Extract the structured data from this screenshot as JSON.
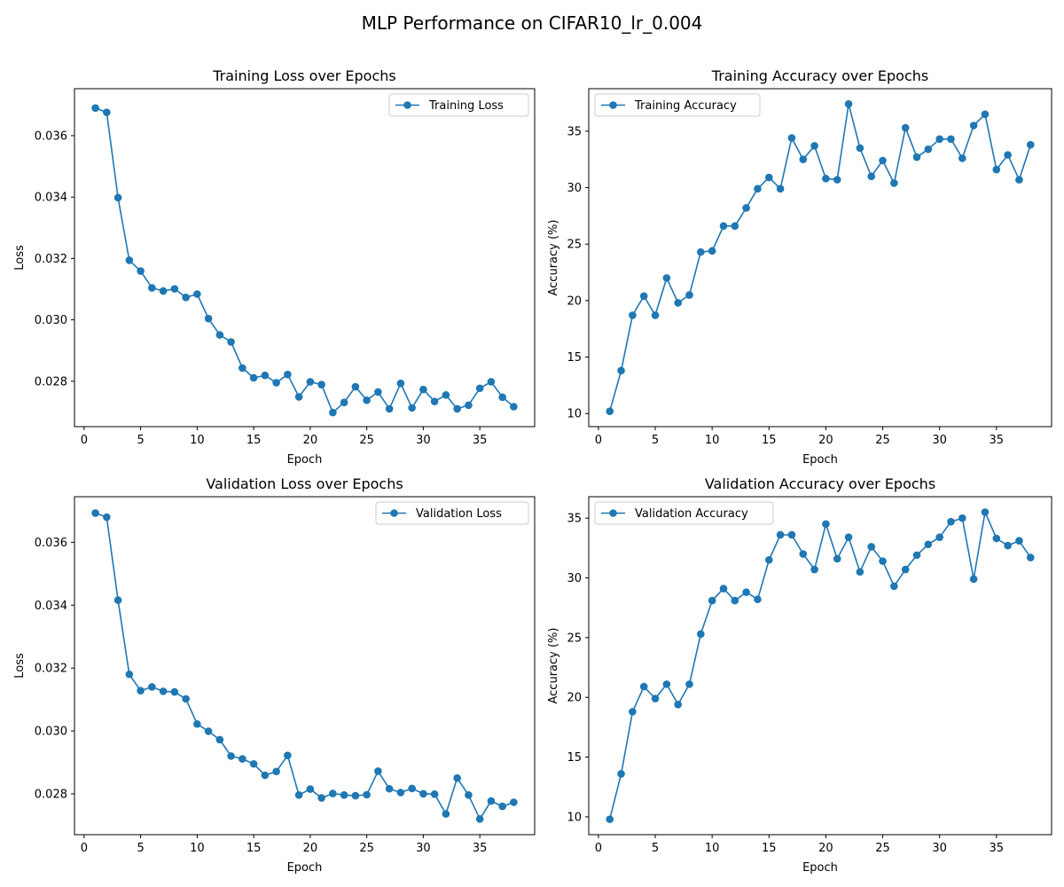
{
  "figure": {
    "suptitle": "MLP Performance on CIFAR10_lr_0.004",
    "line_color": "#1f77b4"
  },
  "chart_data": [
    {
      "type": "line",
      "title": "Training Loss over Epochs",
      "xlabel": "Epoch",
      "ylabel": "Loss",
      "legend": "top-right",
      "grid": false,
      "xlim": [
        -0.85,
        39.85
      ],
      "ylim": [
        0.02652,
        0.03753
      ],
      "xticks": [
        0,
        5,
        10,
        15,
        20,
        25,
        30,
        35
      ],
      "yticks": [
        0.028,
        0.03,
        0.032,
        0.034,
        0.036
      ],
      "ytick_labels": [
        "0.028",
        "0.030",
        "0.032",
        "0.034",
        "0.036"
      ],
      "series": [
        {
          "name": "Training Loss",
          "x": [
            1,
            2,
            3,
            4,
            5,
            6,
            7,
            8,
            9,
            10,
            11,
            12,
            13,
            14,
            15,
            16,
            17,
            18,
            19,
            20,
            21,
            22,
            23,
            24,
            25,
            26,
            27,
            28,
            29,
            30,
            31,
            32,
            33,
            34,
            35,
            36,
            37,
            38
          ],
          "values": [
            0.0369,
            0.03676,
            0.03398,
            0.03194,
            0.03159,
            0.03104,
            0.03094,
            0.03101,
            0.03073,
            0.03084,
            0.03004,
            0.02951,
            0.02928,
            0.02843,
            0.02811,
            0.02819,
            0.02795,
            0.02822,
            0.02749,
            0.02798,
            0.02789,
            0.02698,
            0.02731,
            0.02782,
            0.02738,
            0.02765,
            0.0271,
            0.02793,
            0.02713,
            0.02773,
            0.02734,
            0.02755,
            0.0271,
            0.02722,
            0.02777,
            0.02798,
            0.02748,
            0.02717
          ]
        }
      ]
    },
    {
      "type": "line",
      "title": "Training Accuracy over Epochs",
      "xlabel": "Epoch",
      "ylabel": "Accuracy (%)",
      "legend": "top-left",
      "grid": false,
      "xlim": [
        -0.85,
        39.85
      ],
      "ylim": [
        8.84,
        38.76
      ],
      "xticks": [
        0,
        5,
        10,
        15,
        20,
        25,
        30,
        35
      ],
      "yticks": [
        10,
        15,
        20,
        25,
        30,
        35
      ],
      "ytick_labels": [
        "10",
        "15",
        "20",
        "25",
        "30",
        "35"
      ],
      "series": [
        {
          "name": "Training Accuracy",
          "x": [
            1,
            2,
            3,
            4,
            5,
            6,
            7,
            8,
            9,
            10,
            11,
            12,
            13,
            14,
            15,
            16,
            17,
            18,
            19,
            20,
            21,
            22,
            23,
            24,
            25,
            26,
            27,
            28,
            29,
            30,
            31,
            32,
            33,
            34,
            35,
            36,
            37,
            38
          ],
          "values": [
            10.2,
            13.8,
            18.7,
            20.4,
            18.7,
            22.0,
            19.8,
            20.5,
            24.3,
            24.4,
            26.6,
            26.6,
            28.2,
            29.9,
            30.9,
            29.9,
            34.4,
            32.5,
            33.7,
            30.8,
            30.7,
            37.4,
            33.5,
            31.0,
            32.4,
            30.4,
            35.3,
            32.7,
            33.4,
            34.3,
            34.3,
            32.6,
            35.5,
            36.5,
            31.6,
            32.9,
            30.7,
            33.8
          ]
        }
      ]
    },
    {
      "type": "line",
      "title": "Validation Loss over Epochs",
      "xlabel": "Epoch",
      "ylabel": "Loss",
      "legend": "top-right",
      "grid": false,
      "xlim": [
        -0.85,
        39.85
      ],
      "ylim": [
        0.0267,
        0.03745
      ],
      "xticks": [
        0,
        5,
        10,
        15,
        20,
        25,
        30,
        35
      ],
      "yticks": [
        0.028,
        0.03,
        0.032,
        0.034,
        0.036
      ],
      "ytick_labels": [
        "0.028",
        "0.030",
        "0.032",
        "0.034",
        "0.036"
      ],
      "series": [
        {
          "name": "Validation Loss",
          "x": [
            1,
            2,
            3,
            4,
            5,
            6,
            7,
            8,
            9,
            10,
            11,
            12,
            13,
            14,
            15,
            16,
            17,
            18,
            19,
            20,
            21,
            22,
            23,
            24,
            25,
            26,
            27,
            28,
            29,
            30,
            31,
            32,
            33,
            34,
            35,
            36,
            37,
            38
          ],
          "values": [
            0.03693,
            0.0368,
            0.03416,
            0.0318,
            0.03128,
            0.0314,
            0.03126,
            0.03124,
            0.03102,
            0.03022,
            0.02999,
            0.02972,
            0.0292,
            0.02911,
            0.02895,
            0.02859,
            0.02871,
            0.02922,
            0.02796,
            0.02815,
            0.02787,
            0.02801,
            0.02796,
            0.02794,
            0.02797,
            0.02872,
            0.02816,
            0.02804,
            0.02817,
            0.028,
            0.02799,
            0.02736,
            0.0285,
            0.02796,
            0.0272,
            0.02777,
            0.0276,
            0.02773
          ]
        }
      ]
    },
    {
      "type": "line",
      "title": "Validation Accuracy over Epochs",
      "xlabel": "Epoch",
      "ylabel": "Accuracy (%)",
      "legend": "top-left",
      "grid": false,
      "xlim": [
        -0.85,
        39.85
      ],
      "ylim": [
        8.51,
        36.79
      ],
      "xticks": [
        0,
        5,
        10,
        15,
        20,
        25,
        30,
        35
      ],
      "yticks": [
        10,
        15,
        20,
        25,
        30,
        35
      ],
      "ytick_labels": [
        "10",
        "15",
        "20",
        "25",
        "30",
        "35"
      ],
      "series": [
        {
          "name": "Validation Accuracy",
          "x": [
            1,
            2,
            3,
            4,
            5,
            6,
            7,
            8,
            9,
            10,
            11,
            12,
            13,
            14,
            15,
            16,
            17,
            18,
            19,
            20,
            21,
            22,
            23,
            24,
            25,
            26,
            27,
            28,
            29,
            30,
            31,
            32,
            33,
            34,
            35,
            36,
            37,
            38
          ],
          "values": [
            9.8,
            13.6,
            18.8,
            20.9,
            19.9,
            21.1,
            19.4,
            21.1,
            25.3,
            28.1,
            29.1,
            28.1,
            28.8,
            28.2,
            31.5,
            33.6,
            33.6,
            32.0,
            30.7,
            34.5,
            31.6,
            33.4,
            30.5,
            32.6,
            31.4,
            29.3,
            30.7,
            31.9,
            32.8,
            33.4,
            34.7,
            35.0,
            29.9,
            35.5,
            33.3,
            32.7,
            33.1,
            31.7
          ]
        }
      ]
    }
  ]
}
